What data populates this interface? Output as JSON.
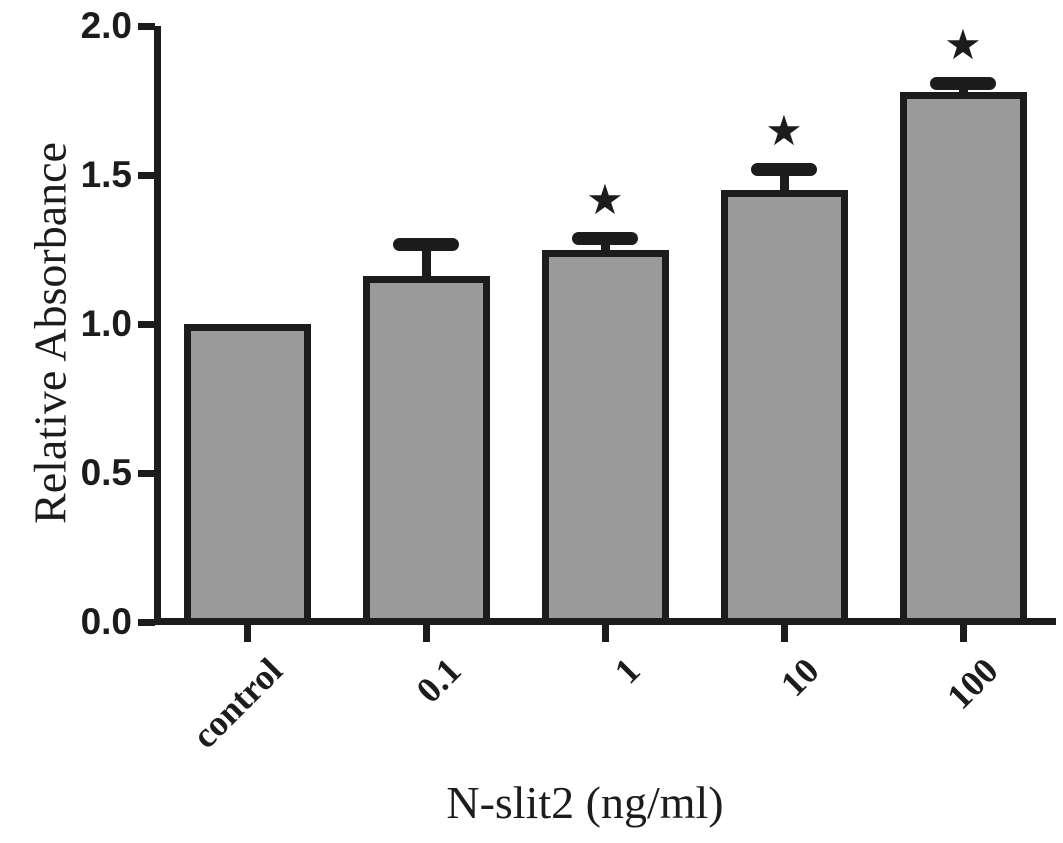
{
  "figure": {
    "background": "#ffffff",
    "ink": "#1c1c1c"
  },
  "chart_data": {
    "type": "bar",
    "title": "",
    "xlabel": "N-slit2 (ng/ml)",
    "ylabel": "Relative Absorbance",
    "categories": [
      "control",
      "0.1",
      "1",
      "10",
      "100"
    ],
    "values": [
      1.0,
      1.16,
      1.25,
      1.45,
      1.78
    ],
    "errors_upper": [
      0,
      0.11,
      0.04,
      0.07,
      0.03
    ],
    "significance": [
      false,
      false,
      true,
      true,
      true
    ],
    "significance_marker": "★",
    "y_ticks": [
      0.0,
      0.5,
      1.0,
      1.5,
      2.0
    ],
    "y_tick_labels": [
      "0.0",
      "0.5",
      "1.0",
      "1.5",
      "2.0"
    ],
    "ylim": [
      0.0,
      2.0
    ],
    "grid": false,
    "legend_position": "none",
    "bar_fill_color": "#9a9a9a",
    "bar_border_color": "#1c1c1c",
    "error_bar_color": "#1c1c1c",
    "axis_color": "#1c1c1c"
  }
}
